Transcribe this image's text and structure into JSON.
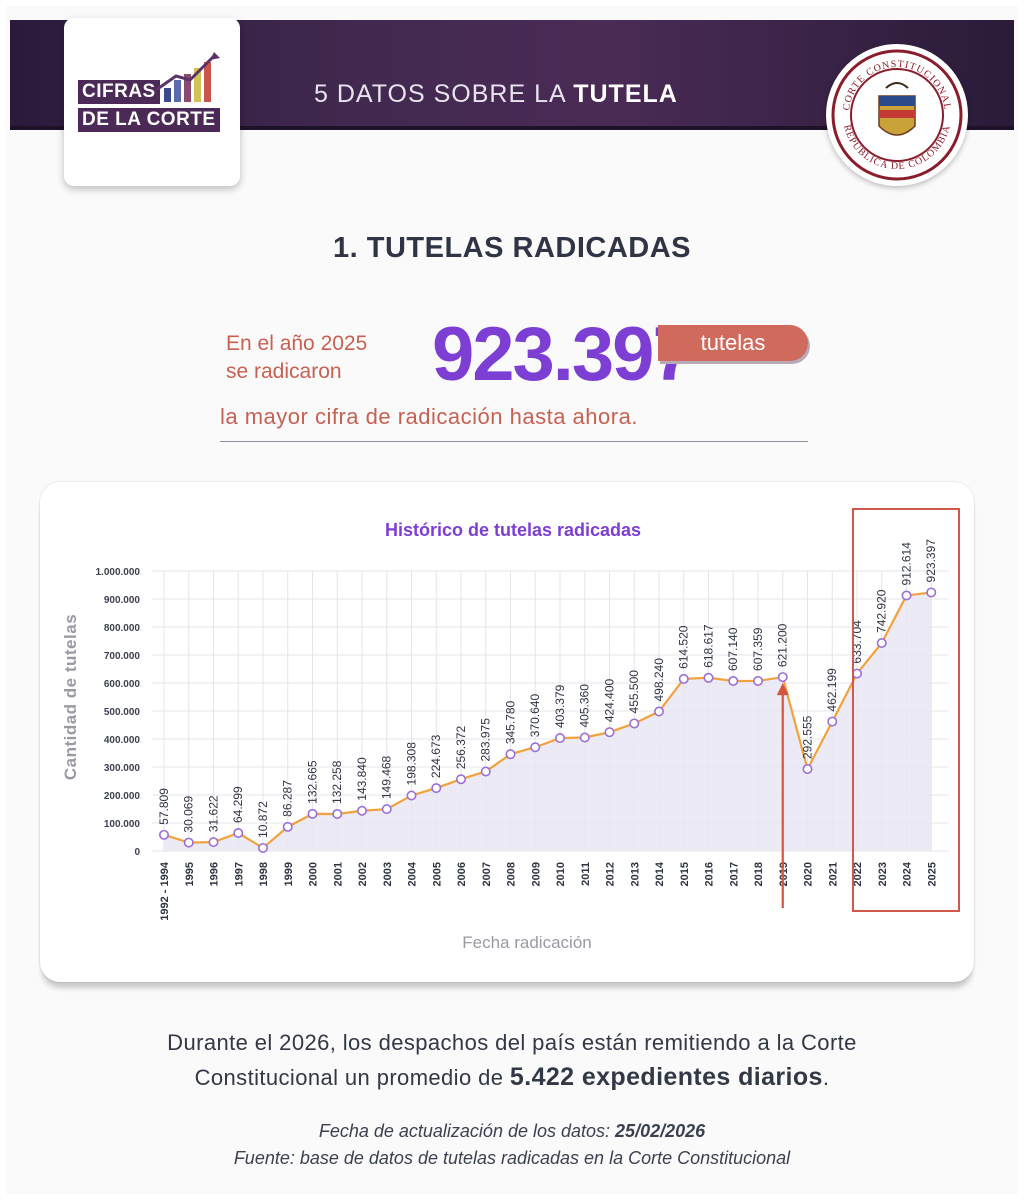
{
  "header": {
    "logo_line1": "CIFRAS",
    "logo_line2": "DE LA CORTE",
    "title_prefix": "5 DATOS SOBRE LA",
    "title_bold": "TUTELA",
    "seal_text_top": "CORTE CONSTITUCIONAL",
    "seal_text_bottom": "REPÚBLICA DE COLOMBIA"
  },
  "section": {
    "title": "1. TUTELAS RADICADAS",
    "lead_line1": "En el año 2025",
    "lead_line2": "se radicaron",
    "big_number": "923.397",
    "pill": "tutelas",
    "subtitle": "la mayor cifra de radicación hasta ahora."
  },
  "chart_data": {
    "type": "area",
    "title": "Histórico de tutelas radicadas",
    "xlabel": "Fecha radicación",
    "ylabel": "Cantidad de tutelas",
    "ylim": [
      0,
      1000000
    ],
    "yticks": [
      "0",
      "100.000",
      "200.000",
      "300.000",
      "400.000",
      "500.000",
      "600.000",
      "700.000",
      "800.000",
      "900.000",
      "1.000.000"
    ],
    "categories": [
      "1992 - 1994",
      "1995",
      "1996",
      "1997",
      "1998",
      "1999",
      "2000",
      "2001",
      "2002",
      "2003",
      "2004",
      "2005",
      "2006",
      "2007",
      "2008",
      "2009",
      "2010",
      "2011",
      "2012",
      "2013",
      "2014",
      "2015",
      "2016",
      "2017",
      "2018",
      "2019",
      "2020",
      "2021",
      "2022",
      "2023",
      "2024",
      "2025"
    ],
    "values": [
      57809,
      30069,
      31622,
      64299,
      10872,
      86287,
      132665,
      132258,
      143840,
      149468,
      198308,
      224673,
      256372,
      283975,
      345780,
      370640,
      403379,
      405360,
      424400,
      455500,
      498240,
      614520,
      618617,
      607140,
      607359,
      621200,
      292555,
      462199,
      633704,
      742920,
      912614,
      923397
    ],
    "labels": [
      "57.809",
      "30.069",
      "31.622",
      "64.299",
      "10.872",
      "86.287",
      "132.665",
      "132.258",
      "143.840",
      "149.468",
      "198.308",
      "224.673",
      "256.372",
      "283.975",
      "345.780",
      "370.640",
      "403.379",
      "405.360",
      "424.400",
      "455.500",
      "498.240",
      "614.520",
      "618.617",
      "607.140",
      "607.359",
      "621.200",
      "292.555",
      "462.199",
      "633.704",
      "742.920",
      "912.614",
      "923.397"
    ],
    "grid": true,
    "colors": {
      "line": "#f0a23c",
      "marker": "#9b6fd6",
      "fill": "#e9e6f2",
      "arrow": "#d6553f",
      "highlight": "#d1584a",
      "title": "#7d3fd3"
    },
    "annotations": {
      "arrow_category": "2019",
      "highlight_range": [
        "2022",
        "2025"
      ]
    }
  },
  "footer": {
    "line1": "Durante el 2026, los despachos del país están remitiendo a la Corte",
    "line2_prefix": "Constitucional un promedio de",
    "line2_bold": "5.422 expedientes diarios",
    "line2_suffix": ".",
    "update_prefix": "Fecha de actualización de los datos:",
    "update_date": "25/02/2026",
    "source": "Fuente: base de datos de tutelas radicadas en la Corte Constitucional"
  }
}
